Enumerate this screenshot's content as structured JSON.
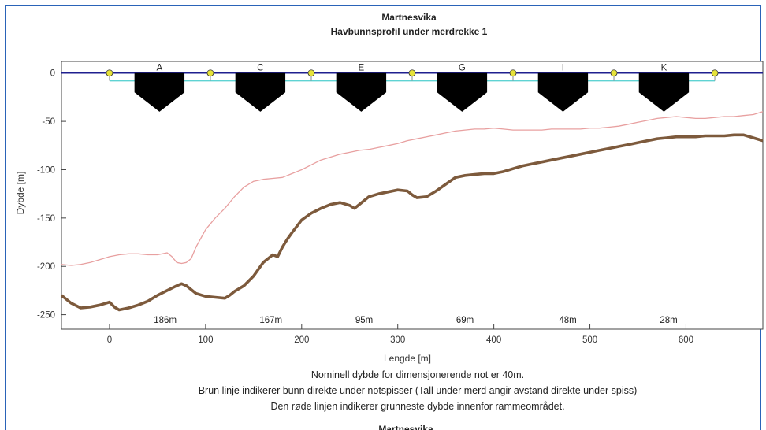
{
  "chart_data": {
    "type": "line",
    "title": "Martnesvika",
    "subtitle": "Havbunnsprofil under merdrekke 1",
    "xlabel": "Lengde [m]",
    "ylabel": "Dybde [m]",
    "xlim": [
      -50,
      680
    ],
    "ylim": [
      -265,
      12
    ],
    "xticks": [
      0,
      100,
      200,
      300,
      400,
      500,
      600
    ],
    "yticks": [
      0,
      -50,
      -100,
      -150,
      -200,
      -250
    ],
    "grid": false,
    "colors": {
      "brown": "#7d5a3c",
      "red": "#e8a0a0",
      "navy": "#1f1f8f",
      "cyan": "#5fd3d3",
      "buoy": "#e6e23a",
      "cage": "#000000"
    },
    "series": [
      {
        "x": [
          -50,
          -40,
          -30,
          -20,
          -10,
          0,
          5,
          10,
          20,
          30,
          40,
          50,
          60,
          70,
          75,
          80,
          90,
          100,
          110,
          120,
          125,
          130,
          140,
          150,
          160,
          170,
          175,
          180,
          185,
          190,
          200,
          210,
          220,
          230,
          240,
          250,
          255,
          260,
          270,
          280,
          290,
          300,
          310,
          315,
          320,
          330,
          340,
          350,
          360,
          370,
          380,
          390,
          400,
          410,
          420,
          430,
          440,
          450,
          460,
          470,
          480,
          490,
          500,
          510,
          520,
          530,
          540,
          550,
          560,
          570,
          580,
          590,
          600,
          610,
          620,
          630,
          640,
          650,
          660,
          670,
          680
        ],
        "y": [
          -230,
          -238,
          -243,
          -242,
          -240,
          -237,
          -242,
          -245,
          -243,
          -240,
          -236,
          -230,
          -225,
          -220,
          -218,
          -220,
          -228,
          -231,
          -232,
          -233,
          -230,
          -226,
          -220,
          -210,
          -196,
          -188,
          -190,
          -180,
          -172,
          -165,
          -152,
          -145,
          -140,
          -136,
          -134,
          -137,
          -140,
          -136,
          -128,
          -125,
          -123,
          -121,
          -122,
          -126,
          -129,
          -128,
          -122,
          -115,
          -108,
          -106,
          -105,
          -104,
          -104,
          -102,
          -99,
          -96,
          -94,
          -92,
          -90,
          -88,
          -86,
          -84,
          -82,
          -80,
          -78,
          -76,
          -74,
          -72,
          -70,
          -68,
          -67,
          -66,
          -66,
          -66,
          -65,
          -65,
          -65,
          -64,
          -64,
          -67,
          -70
        ]
      },
      {
        "x": [
          -50,
          -40,
          -30,
          -20,
          -10,
          0,
          10,
          20,
          30,
          40,
          50,
          60,
          65,
          70,
          75,
          80,
          85,
          90,
          100,
          110,
          120,
          130,
          140,
          150,
          160,
          170,
          180,
          190,
          200,
          210,
          220,
          230,
          240,
          250,
          260,
          270,
          280,
          290,
          300,
          310,
          320,
          330,
          340,
          350,
          360,
          370,
          380,
          390,
          400,
          410,
          420,
          430,
          440,
          450,
          460,
          470,
          480,
          490,
          500,
          510,
          520,
          530,
          540,
          550,
          560,
          570,
          580,
          590,
          600,
          610,
          620,
          630,
          640,
          650,
          660,
          670,
          680
        ],
        "y": [
          -198,
          -199,
          -198,
          -196,
          -193,
          -190,
          -188,
          -187,
          -187,
          -188,
          -188,
          -186,
          -190,
          -196,
          -197,
          -196,
          -192,
          -180,
          -162,
          -150,
          -140,
          -128,
          -118,
          -112,
          -110,
          -109,
          -108,
          -104,
          -100,
          -95,
          -90,
          -87,
          -84,
          -82,
          -80,
          -79,
          -77,
          -75,
          -73,
          -70,
          -68,
          -66,
          -64,
          -62,
          -60,
          -59,
          -58,
          -58,
          -57,
          -58,
          -59,
          -59,
          -59,
          -59,
          -58,
          -58,
          -58,
          -58,
          -57,
          -57,
          -56,
          -55,
          -53,
          -51,
          -49,
          -47,
          -46,
          -45,
          -46,
          -47,
          -47,
          -46,
          -45,
          -45,
          -44,
          -43,
          -40
        ]
      }
    ],
    "surface_line_depth": 0,
    "anchor_line_depth": -8,
    "buoys_x": [
      0,
      105,
      210,
      315,
      420,
      525,
      630
    ],
    "cages": [
      {
        "label": "A",
        "x_center": 52,
        "half_width": 26
      },
      {
        "label": "C",
        "x_center": 157,
        "half_width": 26
      },
      {
        "label": "E",
        "x_center": 262,
        "half_width": 26
      },
      {
        "label": "G",
        "x_center": 367,
        "half_width": 26
      },
      {
        "label": "I",
        "x_center": 472,
        "half_width": 26
      },
      {
        "label": "K",
        "x_center": 577,
        "half_width": 26
      }
    ],
    "cage_depth": 40,
    "cage_wall_depth": 20,
    "distance_labels": [
      {
        "x": 58,
        "text": "186m"
      },
      {
        "x": 168,
        "text": "167m"
      },
      {
        "x": 265,
        "text": "95m"
      },
      {
        "x": 370,
        "text": "69m"
      },
      {
        "x": 477,
        "text": "48m"
      },
      {
        "x": 582,
        "text": "28m"
      }
    ]
  },
  "notes": [
    "Nominell dybde for dimensjonerende not er 40m.",
    "Brun linje indikerer bunn direkte under notspisser (Tall under merd angir avstand direkte under spiss)",
    "Den røde linjen indikerer grunneste dybde innenfor rammeområdet."
  ],
  "next_figure_title": "Martnesvika"
}
